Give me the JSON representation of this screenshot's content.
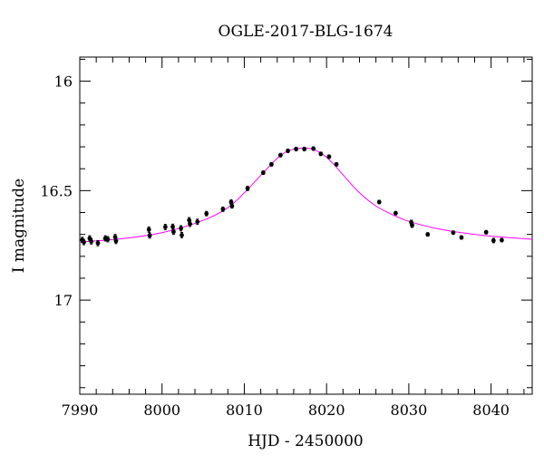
{
  "chart_data": {
    "type": "scatter",
    "title": "OGLE-2017-BLG-1674",
    "xlabel": "HJD - 2450000",
    "ylabel": "I magnitude",
    "xlim": [
      7990,
      8045
    ],
    "ylim": [
      17.43,
      15.89
    ],
    "y_inverted": true,
    "grid": false,
    "xticks_major": [
      7990,
      8000,
      8010,
      8020,
      8030,
      8040
    ],
    "yticks_major": [
      16,
      16.5,
      17
    ],
    "xtick_labels": [
      "7990",
      "8000",
      "8010",
      "8020",
      "8030",
      "8040"
    ],
    "ytick_labels": [
      "16",
      "16.5",
      "17"
    ],
    "colors": {
      "data": "#000000",
      "model": "#ff00ff"
    },
    "series": [
      {
        "values_kind": "data points with error bars",
        "x": [
          7990.3,
          7990.5,
          7991.2,
          7991.4,
          7992.2,
          7993.1,
          7993.4,
          7994.3,
          7994.4,
          7998.4,
          7998.5,
          8000.4,
          8001.3,
          8001.4,
          8002.3,
          8002.4,
          8003.3,
          8003.4,
          8004.3,
          8005.4,
          8007.4,
          8008.4,
          8008.5,
          8010.4,
          8012.3,
          8013.3,
          8014.4,
          8015.3,
          8016.3,
          8017.3,
          8018.4,
          8019.3,
          8020.3,
          8021.2,
          8026.4,
          8028.4,
          8030.3,
          8030.4,
          8032.3,
          8035.4,
          8036.4,
          8039.4,
          8040.3,
          8041.3
        ],
        "y": [
          16.725,
          16.735,
          16.718,
          16.732,
          16.74,
          16.718,
          16.722,
          16.712,
          16.73,
          16.678,
          16.705,
          16.666,
          16.665,
          16.688,
          16.672,
          16.703,
          16.635,
          16.652,
          16.642,
          16.605,
          16.585,
          16.552,
          16.57,
          16.49,
          16.418,
          16.38,
          16.338,
          16.318,
          16.31,
          16.31,
          16.308,
          16.332,
          16.345,
          16.38,
          16.552,
          16.603,
          16.645,
          16.658,
          16.7,
          16.692,
          16.714,
          16.69,
          16.728,
          16.726
        ],
        "yerr": [
          0.012,
          0.012,
          0.012,
          0.012,
          0.012,
          0.012,
          0.012,
          0.012,
          0.012,
          0.012,
          0.012,
          0.012,
          0.012,
          0.012,
          0.012,
          0.012,
          0.012,
          0.012,
          0.012,
          0.01,
          0.01,
          0.01,
          0.01,
          0.01,
          0.008,
          0.008,
          0.008,
          0.008,
          0.008,
          0.008,
          0.008,
          0.008,
          0.008,
          0.008,
          0.008,
          0.008,
          0.01,
          0.01,
          0.008,
          0.008,
          0.008,
          0.008,
          0.01,
          0.008
        ]
      },
      {
        "values_kind": "model curve",
        "x": [
          7990,
          7995,
          8000,
          8005,
          8008,
          8010,
          8012,
          8014,
          8015,
          8016,
          8017,
          8018,
          8019,
          8020,
          8021,
          8022,
          8024,
          8026,
          8028,
          8030,
          8033,
          8036,
          8040,
          8045
        ],
        "y": [
          16.735,
          16.72,
          16.692,
          16.636,
          16.578,
          16.51,
          16.43,
          16.352,
          16.325,
          16.31,
          16.306,
          16.308,
          16.322,
          16.348,
          16.385,
          16.428,
          16.51,
          16.57,
          16.61,
          16.64,
          16.67,
          16.69,
          16.708,
          16.722
        ]
      }
    ]
  }
}
